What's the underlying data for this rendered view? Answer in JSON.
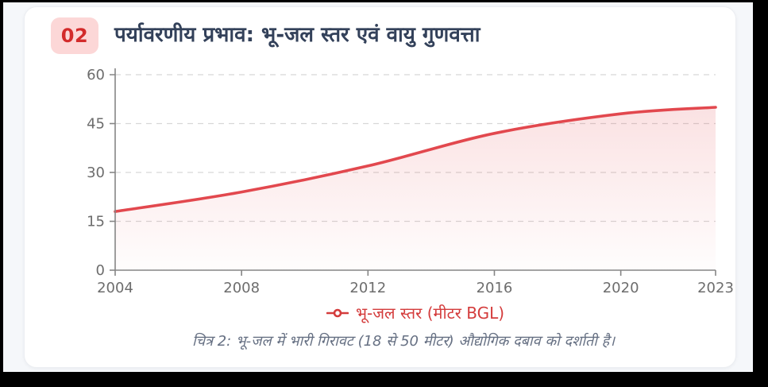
{
  "header": {
    "badge": "02",
    "title": "पर्यावरणीय प्रभाव: भू-जल स्तर एवं वायु गुणवत्ता"
  },
  "legend": {
    "marker": "line-circle-marker",
    "label": "भू-जल स्तर (मीटर BGL)"
  },
  "caption": "चित्र 2: भू-जल में भारी गिरावट (18 से 50 मीटर) औद्योगिक दबाव को दर्शाती है।",
  "colors": {
    "accent_red": "#e2484e",
    "badge_bg": "#fcd7d7",
    "badge_text": "#d32b2b",
    "title_text": "#33415a",
    "axis_line": "#858585",
    "axis_text": "#6d6d6d",
    "grid": "#d7d7d7",
    "legend_text": "#d43c3c",
    "caption_text": "#667083",
    "card_bg": "#ffffff",
    "page_bg": "#f5f7fa"
  },
  "chart_data": {
    "type": "area",
    "title": "",
    "xlabel": "",
    "ylabel": "",
    "series": [
      {
        "name": "भू-जल स्तर (मीटर BGL)",
        "x": [
          2004,
          2008,
          2012,
          2016,
          2020,
          2023
        ],
        "values": [
          18,
          24,
          32,
          42,
          48,
          50
        ]
      }
    ],
    "xlim": [
      2004,
      2023
    ],
    "ylim": [
      0,
      60
    ],
    "xticks": [
      "2004",
      "2008",
      "2012",
      "2016",
      "2020",
      "2023"
    ],
    "xtick_values": [
      2004,
      2008,
      2012,
      2016,
      2020,
      2023
    ],
    "yticks": [
      "0",
      "15",
      "30",
      "45",
      "60"
    ],
    "ytick_values": [
      0,
      15,
      30,
      45,
      60
    ],
    "grid": "horizontal-dashed",
    "legend_position": "bottom",
    "line_color": "#e2484e",
    "area_fill_top": "rgba(226,72,78,0.16)",
    "area_fill_bottom": "rgba(226,72,78,0.01)"
  }
}
